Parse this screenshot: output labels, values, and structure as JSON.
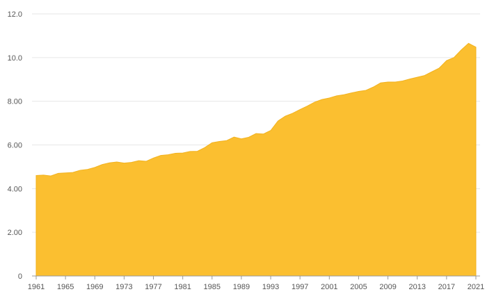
{
  "chart_data": {
    "type": "area",
    "title": "",
    "xlabel": "",
    "ylabel": "",
    "ylim": [
      0,
      12
    ],
    "xlim": [
      1961,
      2021
    ],
    "grid": true,
    "legend": "none",
    "colors": {
      "area": "#fbbf30",
      "grid": "#e6e6e6",
      "axis": "#999999",
      "tick_text": "#555555"
    },
    "y_ticks": [
      "0",
      "2.00",
      "4.00",
      "6.00",
      "8.00",
      "10.0",
      "12.0"
    ],
    "y_tick_values": [
      0,
      2,
      4,
      6,
      8,
      10,
      12
    ],
    "x_ticks": [
      "1961",
      "1965",
      "1969",
      "1973",
      "1977",
      "1981",
      "1985",
      "1989",
      "1993",
      "1997",
      "2001",
      "2005",
      "2009",
      "2013",
      "2017",
      "2021"
    ],
    "x_tick_values": [
      1961,
      1965,
      1969,
      1973,
      1977,
      1981,
      1985,
      1989,
      1993,
      1997,
      2001,
      2005,
      2009,
      2013,
      2017,
      2021
    ],
    "series": [
      {
        "x": [
          1961,
          1962,
          1963,
          1964,
          1965,
          1966,
          1967,
          1968,
          1969,
          1970,
          1971,
          1972,
          1973,
          1974,
          1975,
          1976,
          1977,
          1978,
          1979,
          1980,
          1981,
          1982,
          1983,
          1984,
          1985,
          1986,
          1987,
          1988,
          1989,
          1990,
          1991,
          1992,
          1993,
          1994,
          1995,
          1996,
          1997,
          1998,
          1999,
          2000,
          2001,
          2002,
          2003,
          2004,
          2005,
          2006,
          2007,
          2008,
          2009,
          2010,
          2011,
          2012,
          2013,
          2014,
          2015,
          2016,
          2017,
          2018,
          2019,
          2020,
          2021
        ],
        "values": [
          4.6,
          4.62,
          4.58,
          4.7,
          4.72,
          4.74,
          4.84,
          4.88,
          4.97,
          5.1,
          5.18,
          5.22,
          5.17,
          5.2,
          5.28,
          5.25,
          5.4,
          5.52,
          5.55,
          5.62,
          5.63,
          5.7,
          5.71,
          5.88,
          6.1,
          6.16,
          6.2,
          6.36,
          6.28,
          6.35,
          6.52,
          6.5,
          6.66,
          7.1,
          7.32,
          7.45,
          7.62,
          7.78,
          7.96,
          8.08,
          8.15,
          8.25,
          8.3,
          8.38,
          8.45,
          8.5,
          8.65,
          8.84,
          8.88,
          8.88,
          8.93,
          9.02,
          9.1,
          9.18,
          9.35,
          9.52,
          9.86,
          10.0,
          10.35,
          10.65,
          10.48
        ]
      }
    ]
  }
}
